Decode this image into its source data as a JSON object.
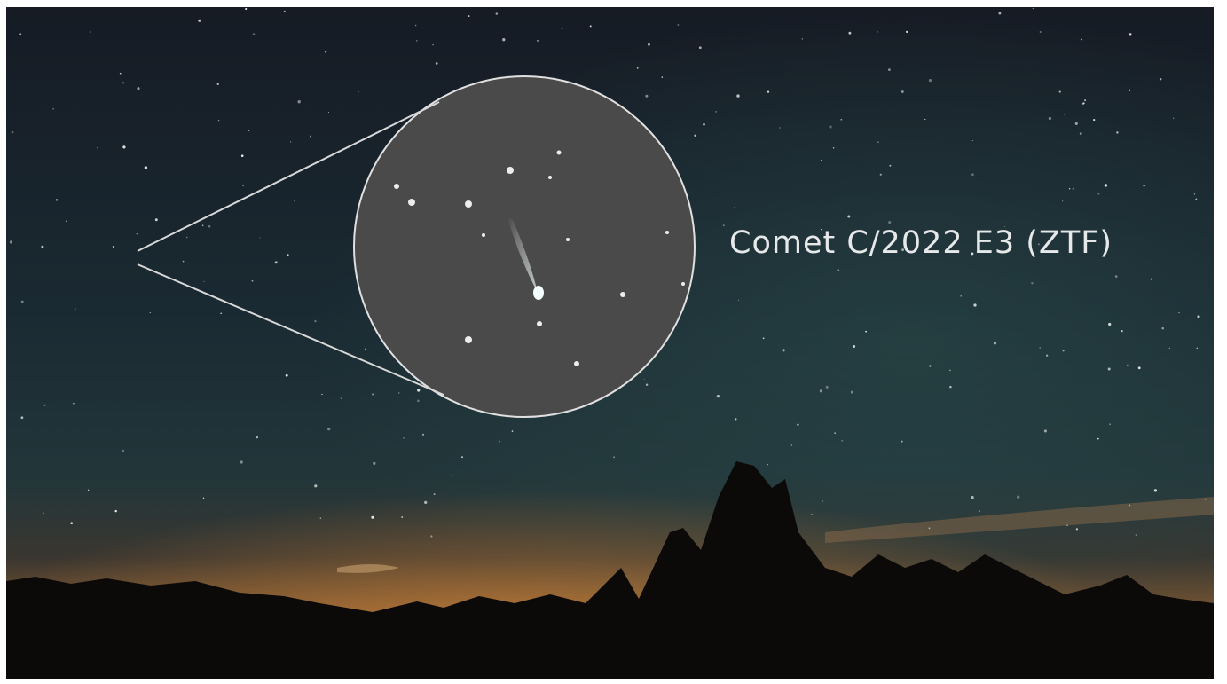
{
  "label": "Comet C/2022 E3 (ZTF)"
}
